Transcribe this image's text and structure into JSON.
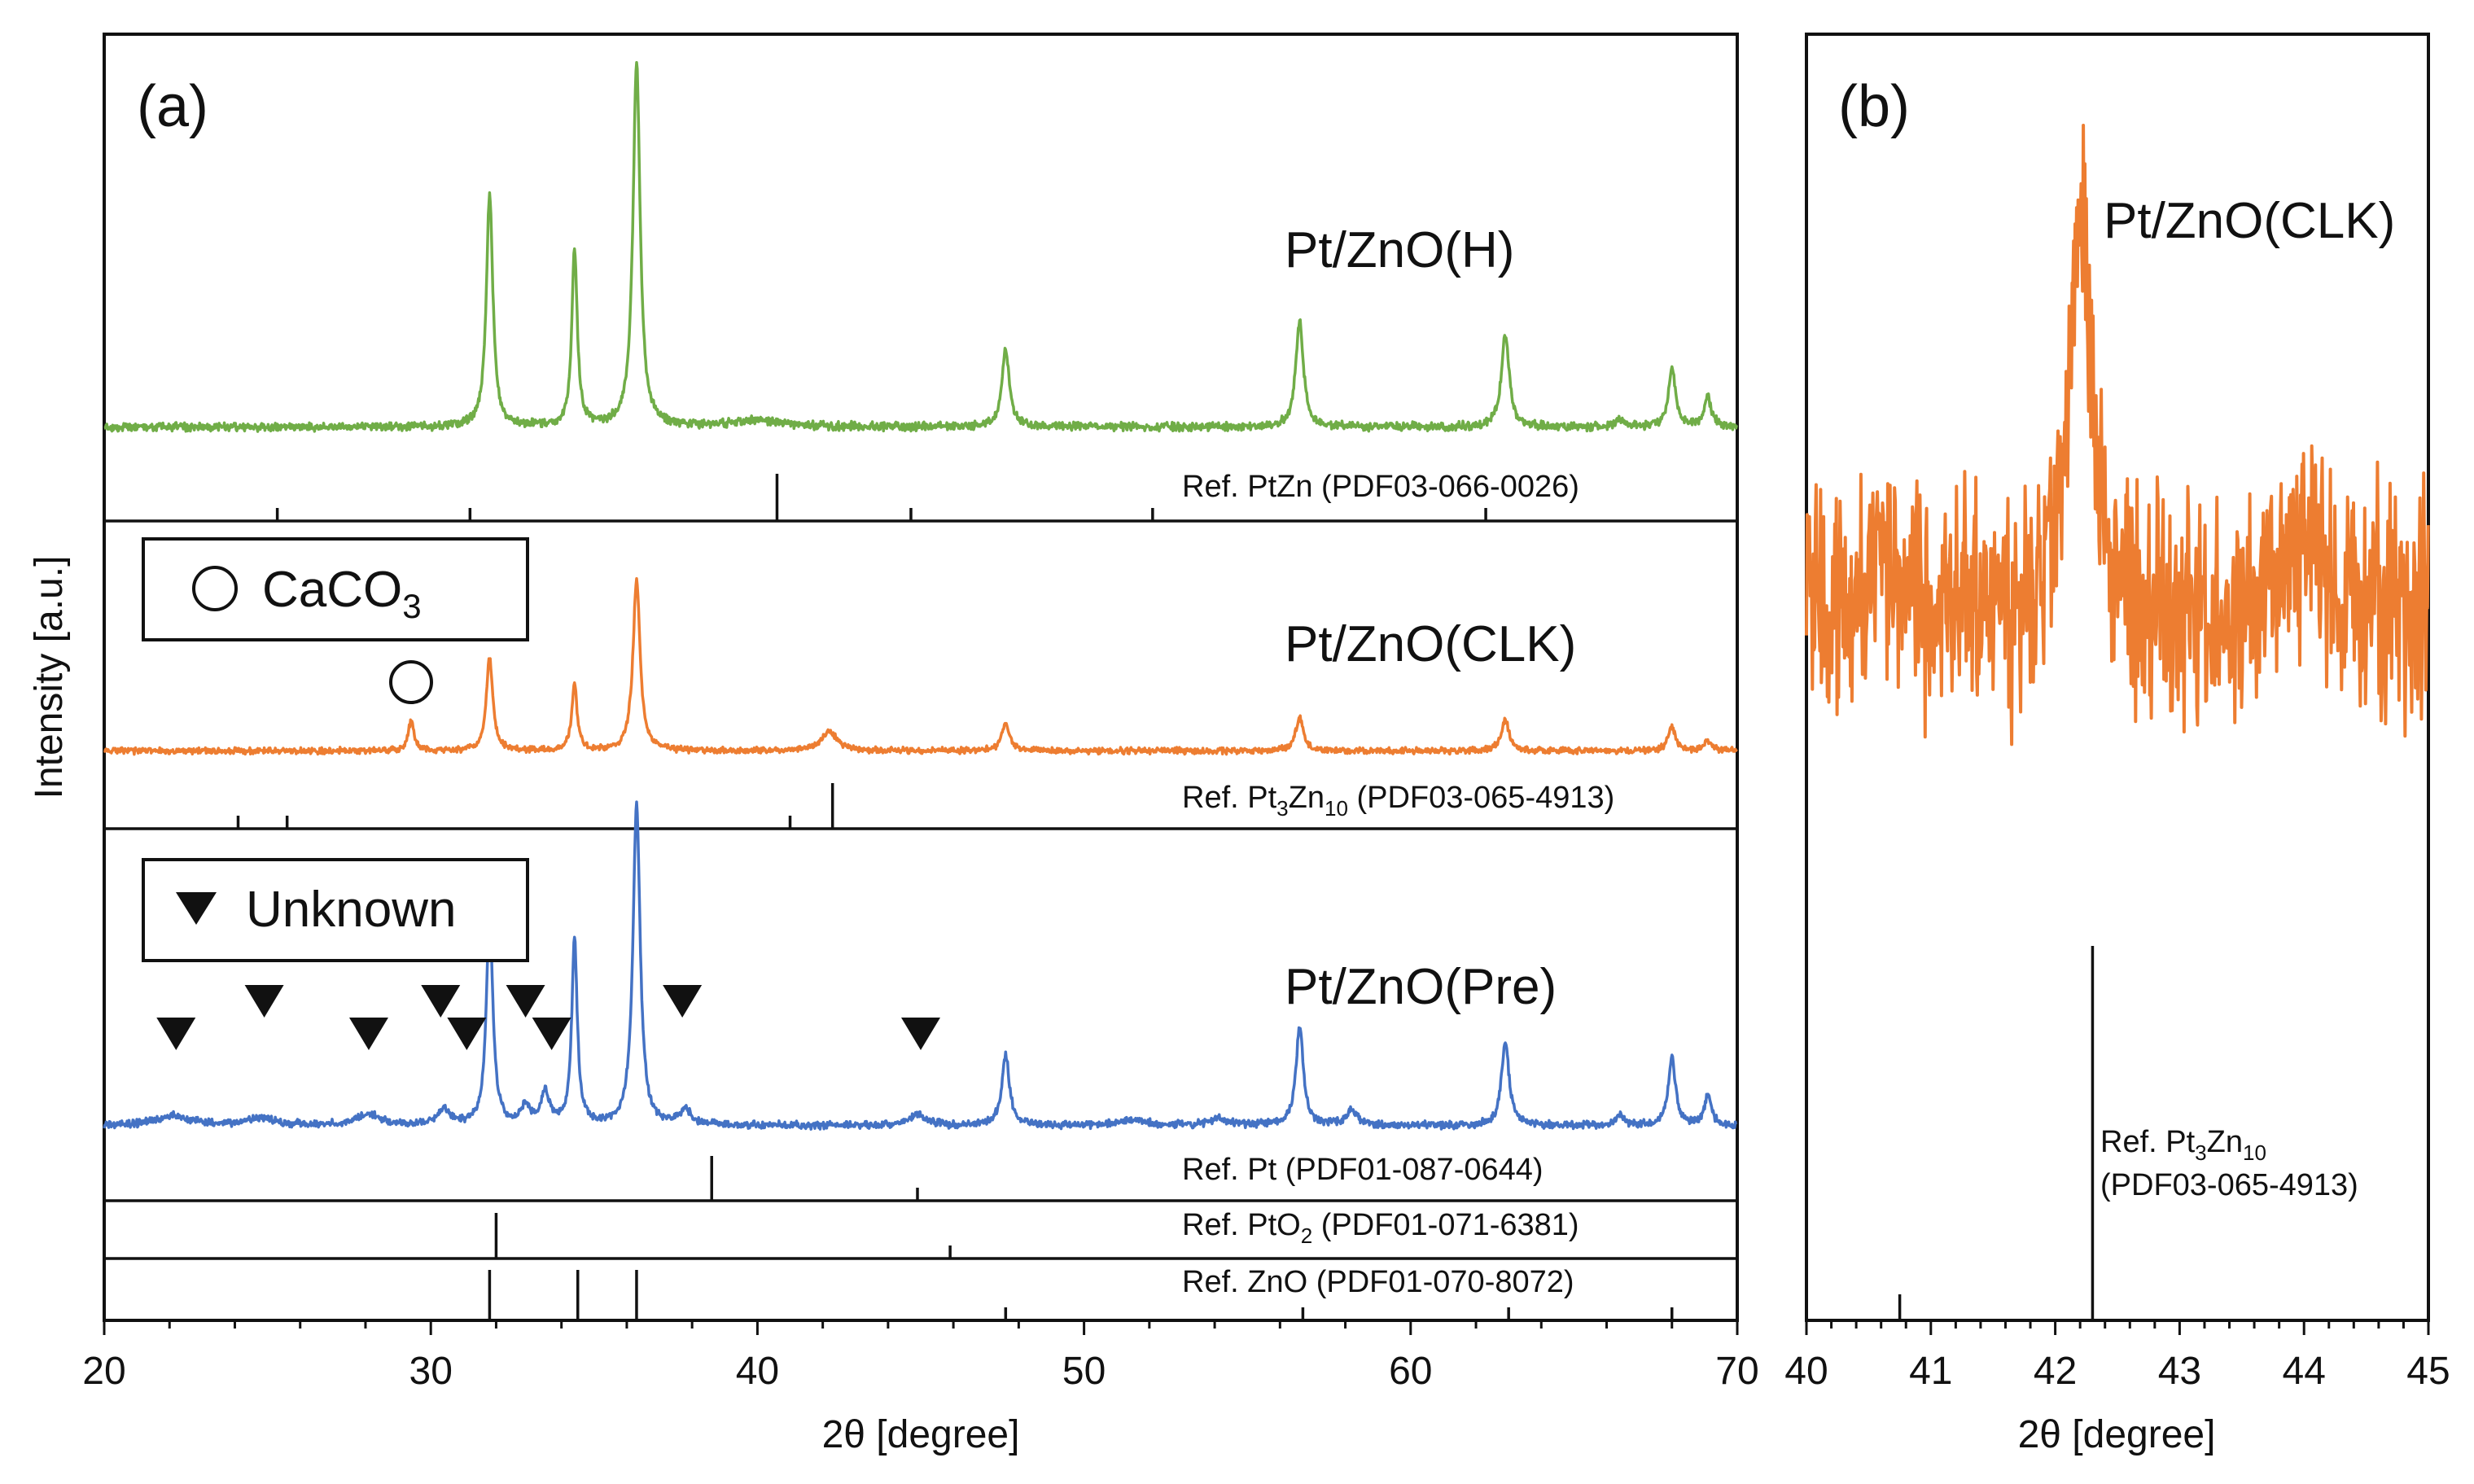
{
  "chart_data": [
    {
      "panel": "(a)",
      "type": "line",
      "xlabel": "2θ [degree]",
      "ylabel": "Intensity [a.u.]",
      "xlim": [
        20,
        70
      ],
      "xticks": [
        20,
        30,
        40,
        50,
        60,
        70
      ],
      "series": [
        {
          "name": "Pt/ZnO(H)",
          "color": "#70ad47",
          "baseline": 0.02,
          "peaks": [
            [
              31.8,
              0.55,
              0.12
            ],
            [
              34.4,
              0.42,
              0.1
            ],
            [
              36.3,
              0.86,
              0.13
            ],
            [
              40.0,
              0.015,
              1.0
            ],
            [
              47.6,
              0.18,
              0.14
            ],
            [
              56.6,
              0.25,
              0.14
            ],
            [
              62.9,
              0.22,
              0.14
            ],
            [
              66.4,
              0.02,
              0.12
            ],
            [
              68.0,
              0.14,
              0.13
            ],
            [
              69.1,
              0.07,
              0.13
            ]
          ],
          "reference": {
            "label": "Ref. PtZn (PDF03-066-0026)",
            "major": [
              40.6
            ],
            "minor": [
              25.3,
              31.2,
              44.7,
              52.1,
              62.3
            ]
          }
        },
        {
          "name": "Pt/ZnO(CLK)",
          "color": "#ed7d31",
          "baseline": 0.02,
          "peaks": [
            [
              29.4,
              0.1,
              0.1
            ],
            [
              31.8,
              0.3,
              0.12
            ],
            [
              34.4,
              0.21,
              0.1
            ],
            [
              36.3,
              0.55,
              0.13
            ],
            [
              42.2,
              0.06,
              0.3
            ],
            [
              47.6,
              0.09,
              0.14
            ],
            [
              56.6,
              0.11,
              0.14
            ],
            [
              62.9,
              0.1,
              0.14
            ],
            [
              68.0,
              0.08,
              0.13
            ],
            [
              69.1,
              0.03,
              0.13
            ]
          ],
          "reference": {
            "label": "Ref. Pt3Zn10 (PDF03-065-4913)",
            "major": [
              42.3
            ],
            "minor": [
              24.1,
              25.6,
              41.0
            ]
          }
        },
        {
          "name": "Pt/ZnO(Pre)",
          "color": "#4472c4",
          "baseline": 0.02,
          "peaks": [
            [
              22.1,
              0.025,
              0.6
            ],
            [
              24.8,
              0.02,
              0.5
            ],
            [
              28.1,
              0.03,
              0.4
            ],
            [
              30.4,
              0.04,
              0.25
            ],
            [
              31.8,
              0.56,
              0.12
            ],
            [
              32.9,
              0.05,
              0.15
            ],
            [
              33.5,
              0.09,
              0.15
            ],
            [
              34.4,
              0.5,
              0.1
            ],
            [
              36.3,
              0.86,
              0.13
            ],
            [
              37.8,
              0.04,
              0.2
            ],
            [
              44.9,
              0.03,
              0.3
            ],
            [
              47.6,
              0.19,
              0.14
            ],
            [
              51.5,
              0.015,
              0.5
            ],
            [
              54.1,
              0.02,
              0.3
            ],
            [
              56.6,
              0.26,
              0.14
            ],
            [
              58.2,
              0.04,
              0.2
            ],
            [
              62.9,
              0.22,
              0.14
            ],
            [
              66.4,
              0.03,
              0.12
            ],
            [
              68.0,
              0.18,
              0.13
            ],
            [
              69.1,
              0.08,
              0.13
            ]
          ],
          "markers": [
            22.2,
            24.9,
            28.1,
            30.3,
            31.1,
            32.9,
            33.7,
            37.7,
            45.0
          ]
        }
      ],
      "references": [
        {
          "label": "Ref. Pt (PDF01-087-0644)",
          "major": [
            38.6
          ],
          "minor": [
            44.9
          ]
        },
        {
          "label": "Ref. PtO2 (PDF01-071-6381)",
          "major": [
            32.0
          ],
          "minor": [
            45.9
          ]
        },
        {
          "label": "Ref. ZnO (PDF01-070-8072)",
          "major": [
            31.8,
            34.5,
            36.3
          ],
          "minor": [
            47.6,
            56.7,
            63.0,
            68.0
          ]
        }
      ],
      "legends": [
        "CaCO3",
        "Unknown"
      ]
    },
    {
      "panel": "(b)",
      "type": "line",
      "xlabel": "2θ [degree]",
      "xlim": [
        40,
        45
      ],
      "xticks": [
        40,
        41,
        42,
        43,
        44,
        45
      ],
      "series": [
        {
          "name": "Pt/ZnO(CLK)",
          "color": "#ed7d31",
          "baseline": 0.35,
          "peaks": [
            [
              40.6,
              0.07,
              0.15
            ],
            [
              42.2,
              0.4,
              0.12
            ],
            [
              44.0,
              0.08,
              0.2
            ]
          ]
        }
      ],
      "reference": {
        "label_line1": "Ref. Pt3Zn10",
        "label_line2": "(PDF03-065-4913)",
        "major": [
          42.3
        ],
        "minor": [
          40.75
        ]
      }
    }
  ],
  "labels": {
    "panel_a": "(a)",
    "panel_b": "(b)",
    "xlabel_a": "2θ [degree]",
    "xlabel_b": "2θ [degree]",
    "ylabel": "Intensity [a.u.]",
    "sample_h": "Pt/ZnO(H)",
    "sample_clk": "Pt/ZnO(CLK)",
    "sample_pre": "Pt/ZnO(Pre)",
    "sample_b": "Pt/ZnO(CLK)",
    "ref_ptzn": "Ref. PtZn (PDF03-066-0026)",
    "ref_pt3zn10_pre": "Ref. Pt",
    "ref_pt3zn10_sub1": "3",
    "ref_pt3zn10_mid": "Zn",
    "ref_pt3zn10_sub2": "10",
    "ref_pt3zn10_post": " (PDF03-065-4913)",
    "ref_pt": "Ref. Pt (PDF01-087-0644)",
    "ref_pto2_pre": "Ref. PtO",
    "ref_pto2_sub": "2",
    "ref_pto2_post": " (PDF01-071-6381)",
    "ref_zno": "Ref. ZnO (PDF01-070-8072)",
    "ref_b_line2": "(PDF03-065-4913)",
    "legend_caco3_pre": "CaCO",
    "legend_caco3_sub": "3",
    "legend_unknown": "Unknown"
  }
}
